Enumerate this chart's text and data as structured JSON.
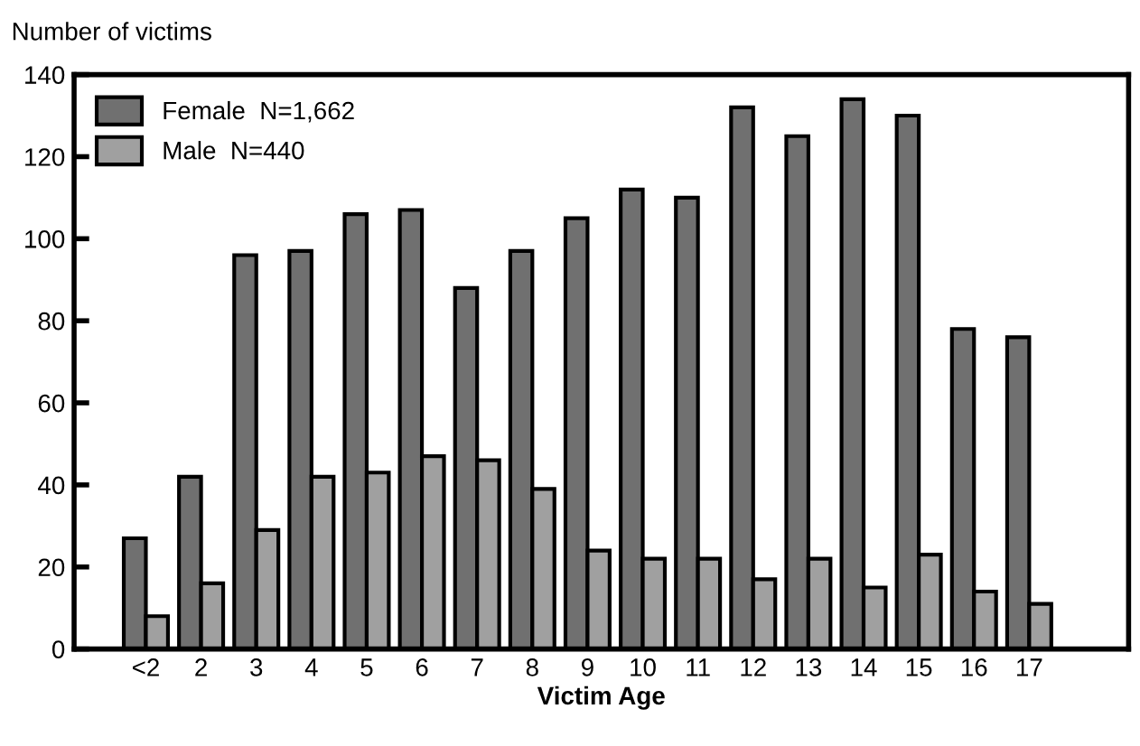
{
  "chart_data": {
    "type": "bar",
    "xlabel": "Victim Age",
    "ylabel": "Number of victims",
    "categories": [
      "<2",
      "2",
      "3",
      "4",
      "5",
      "6",
      "7",
      "8",
      "9",
      "10",
      "11",
      "12",
      "13",
      "14",
      "15",
      "16",
      "17"
    ],
    "series": [
      {
        "name": "Female  N=1,662",
        "color": "#707070",
        "values": [
          27,
          42,
          96,
          97,
          106,
          107,
          88,
          97,
          105,
          112,
          110,
          132,
          125,
          134,
          130,
          78,
          76
        ]
      },
      {
        "name": "Male  N=440",
        "color": "#a0a0a0",
        "values": [
          8,
          16,
          29,
          42,
          43,
          47,
          46,
          39,
          24,
          22,
          22,
          17,
          22,
          15,
          23,
          14,
          11
        ]
      }
    ],
    "ylim": [
      0,
      140
    ],
    "yticks": [
      0,
      20,
      40,
      60,
      80,
      100,
      120,
      140
    ],
    "grid": false,
    "legend": "top left"
  }
}
